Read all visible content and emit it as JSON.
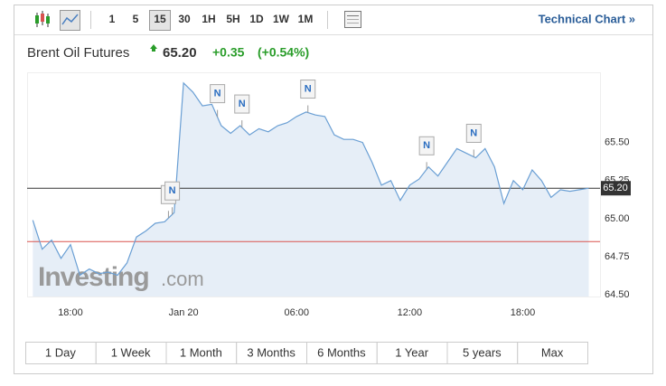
{
  "toolbar": {
    "intervals": [
      "1",
      "5",
      "15",
      "30",
      "1H",
      "5H",
      "1D",
      "1W",
      "1M"
    ],
    "selected_interval": "15",
    "link": "Technical Chart »"
  },
  "header": {
    "title": "Brent Oil Futures",
    "price": "65.20",
    "change": "+0.35",
    "change_percent": "(+0.54%)"
  },
  "watermark": {
    "brand": "Investing",
    "suffix": ".com"
  },
  "ranges": [
    "1 Day",
    "1 Week",
    "1 Month",
    "3 Months",
    "6 Months",
    "1 Year",
    "5 years",
    "Max"
  ],
  "chart_data": {
    "type": "area",
    "x": [
      16,
      16.5,
      17,
      17.5,
      18,
      18.5,
      19,
      19.5,
      20,
      20.5,
      21,
      21.5,
      22,
      22.5,
      23,
      23.5,
      24,
      24.5,
      25,
      25.5,
      26,
      26.5,
      27,
      27.5,
      28,
      28.5,
      29,
      29.5,
      30,
      30.5,
      31,
      31.5,
      32,
      32.5,
      33,
      33.5,
      34,
      34.5,
      35,
      35.5,
      36,
      36.5,
      37,
      37.5,
      38,
      38.5,
      39,
      39.5,
      40,
      40.5,
      41,
      41.5,
      42,
      42.5,
      43,
      43.5,
      44,
      44.5,
      45,
      45.5
    ],
    "series": [
      {
        "name": "Brent Oil Futures",
        "color": "#6a9fd4",
        "values": [
          64.99,
          64.8,
          64.86,
          64.74,
          64.83,
          64.63,
          64.67,
          64.64,
          64.65,
          64.63,
          64.71,
          64.88,
          64.92,
          64.97,
          64.98,
          65.04,
          65.89,
          65.83,
          65.74,
          65.75,
          65.61,
          65.56,
          65.61,
          65.55,
          65.59,
          65.57,
          65.61,
          65.63,
          65.67,
          65.7,
          65.68,
          65.67,
          65.55,
          65.52,
          65.52,
          65.5,
          65.37,
          65.22,
          65.25,
          65.12,
          65.22,
          65.26,
          65.34,
          65.28,
          65.37,
          65.46,
          65.43,
          65.4,
          65.46,
          65.34,
          65.1,
          65.25,
          65.19,
          65.32,
          65.25,
          65.14,
          65.19,
          65.18,
          65.19,
          65.2
        ]
      }
    ],
    "xlim": [
      15.7,
      46.1
    ],
    "ylim": [
      64.49,
      65.96
    ],
    "xticks": [
      {
        "value": 18,
        "label": "18:00"
      },
      {
        "value": 24,
        "label": "Jan 20"
      },
      {
        "value": 30,
        "label": "06:00"
      },
      {
        "value": 36,
        "label": "12:00"
      },
      {
        "value": 42,
        "label": "18:00"
      }
    ],
    "yticks": [
      {
        "value": 64.5,
        "label": "64.50"
      },
      {
        "value": 64.75,
        "label": "64.75"
      },
      {
        "value": 65,
        "label": "65.00"
      },
      {
        "value": 65.25,
        "label": "65.25"
      },
      {
        "value": 65.5,
        "label": "65.50"
      }
    ],
    "last_value": 65.2,
    "last_label": "65.20",
    "last_color": "#333333",
    "prev_close": 64.85,
    "prev_close_color": "#d9534f",
    "annotations": [
      {
        "x": 23.2,
        "label": "N"
      },
      {
        "x": 23.4,
        "label": "N"
      },
      {
        "x": 25.8,
        "label": "N"
      },
      {
        "x": 27.1,
        "label": "N"
      },
      {
        "x": 30.6,
        "label": "N"
      },
      {
        "x": 36.9,
        "label": "N"
      },
      {
        "x": 39.4,
        "label": "N"
      }
    ],
    "grid": false
  }
}
